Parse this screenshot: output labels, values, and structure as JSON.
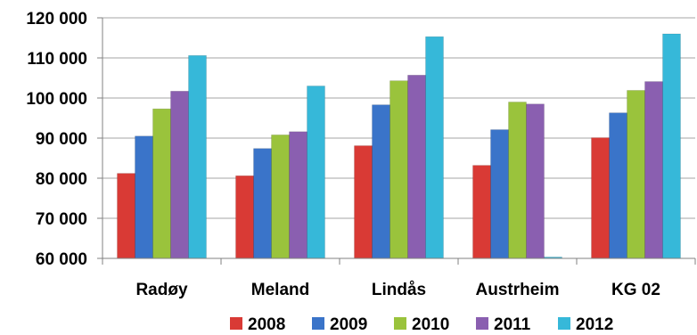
{
  "chart_data": {
    "type": "bar",
    "categories": [
      "Radøy",
      "Meland",
      "Lindås",
      "Austrheim",
      "KG 02"
    ],
    "series": [
      {
        "name": "2008",
        "color": "#d93a35",
        "values": [
          81200,
          80600,
          88100,
          83200,
          90100
        ]
      },
      {
        "name": "2009",
        "color": "#3a74c9",
        "values": [
          90500,
          87400,
          98300,
          92100,
          96300
        ]
      },
      {
        "name": "2010",
        "color": "#9ac33c",
        "values": [
          97300,
          90800,
          104300,
          99000,
          101900
        ]
      },
      {
        "name": "2011",
        "color": "#8a5fb0",
        "values": [
          101700,
          91600,
          105700,
          98500,
          104100
        ]
      },
      {
        "name": "2012",
        "color": "#36b8d9",
        "values": [
          110600,
          103000,
          115300,
          60000,
          116000
        ]
      }
    ],
    "yticks": [
      "60 000",
      "70 000",
      "80 000",
      "90 000",
      "100 000",
      "110 000",
      "120 000"
    ],
    "ylim": [
      60000,
      120000
    ],
    "grid": true,
    "legend_position": "bottom"
  }
}
